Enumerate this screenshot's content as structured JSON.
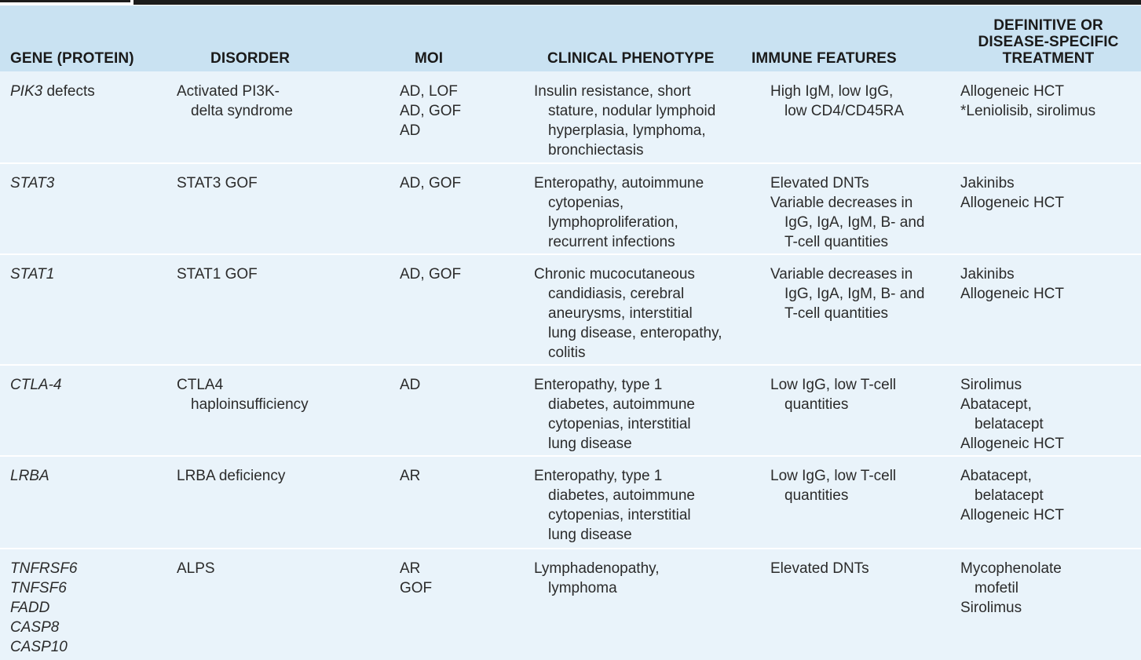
{
  "headers": {
    "gene": "GENE (PROTEIN)",
    "disorder": "DISORDER",
    "moi": "MOI",
    "phenotype": "CLINICAL PHENOTYPE",
    "immune": "IMMUNE FEATURES",
    "treatment_line1": "DEFINITIVE OR",
    "treatment_line2": "DISEASE-SPECIFIC",
    "treatment_line3": "TREATMENT"
  },
  "rows": [
    {
      "gene": [
        "PIK3",
        " defects"
      ],
      "disorder": [
        "Activated PI3K-",
        "delta syndrome"
      ],
      "moi": [
        "AD, LOF",
        "AD, GOF",
        "AD"
      ],
      "phenotype": [
        "Insulin resistance, short",
        "stature, nodular lymphoid",
        "hyperplasia, lymphoma,",
        "bronchiectasis"
      ],
      "immune": [
        "High IgM, low IgG,",
        "low CD4/CD45RA"
      ],
      "treatment": [
        "Allogeneic HCT",
        "*Leniolisib, sirolimus"
      ]
    },
    {
      "gene": [
        "STAT3"
      ],
      "disorder": [
        "STAT3 GOF"
      ],
      "moi": [
        "AD, GOF"
      ],
      "phenotype": [
        "Enteropathy, autoimmune",
        "cytopenias,",
        "lymphoproliferation,",
        "recurrent infections"
      ],
      "immune": [
        "Elevated DNTs",
        "Variable decreases in",
        "IgG, IgA, IgM, B- and",
        "T-cell quantities"
      ],
      "treatment": [
        "Jakinibs",
        "Allogeneic HCT"
      ]
    },
    {
      "gene": [
        "STAT1"
      ],
      "disorder": [
        "STAT1 GOF"
      ],
      "moi": [
        "AD, GOF"
      ],
      "phenotype": [
        "Chronic mucocutaneous",
        "candidiasis, cerebral",
        "aneurysms, interstitial",
        "lung disease, enteropathy,",
        "colitis"
      ],
      "immune": [
        "Variable decreases in",
        "IgG, IgA, IgM, B- and",
        "T-cell quantities"
      ],
      "treatment": [
        "Jakinibs",
        "Allogeneic HCT"
      ]
    },
    {
      "gene": [
        "CTLA-4"
      ],
      "disorder": [
        "CTLA4",
        "haploinsufficiency"
      ],
      "moi": [
        "AD"
      ],
      "phenotype": [
        "Enteropathy, type 1",
        "diabetes, autoimmune",
        "cytopenias, interstitial",
        "lung disease"
      ],
      "immune": [
        "Low IgG, low T-cell",
        "quantities"
      ],
      "treatment": [
        "Sirolimus",
        "Abatacept,",
        "belatacept",
        "Allogeneic HCT"
      ]
    },
    {
      "gene": [
        "LRBA"
      ],
      "disorder": [
        "LRBA deficiency"
      ],
      "moi": [
        "AR"
      ],
      "phenotype": [
        "Enteropathy, type 1",
        "diabetes, autoimmune",
        "cytopenias, interstitial",
        "lung disease"
      ],
      "immune": [
        "Low IgG, low T-cell",
        "quantities"
      ],
      "treatment": [
        "Abatacept,",
        "belatacept",
        "Allogeneic HCT"
      ]
    },
    {
      "gene": [
        "TNFRSF6",
        "TNFSF6",
        "FADD",
        "CASP8",
        "CASP10"
      ],
      "disorder": [
        "ALPS"
      ],
      "moi": [
        "AR",
        "GOF"
      ],
      "phenotype": [
        "Lymphadenopathy,",
        "lymphoma"
      ],
      "immune": [
        "Elevated DNTs"
      ],
      "treatment": [
        "Mycophenolate",
        "mofetil",
        "Sirolimus"
      ]
    }
  ]
}
